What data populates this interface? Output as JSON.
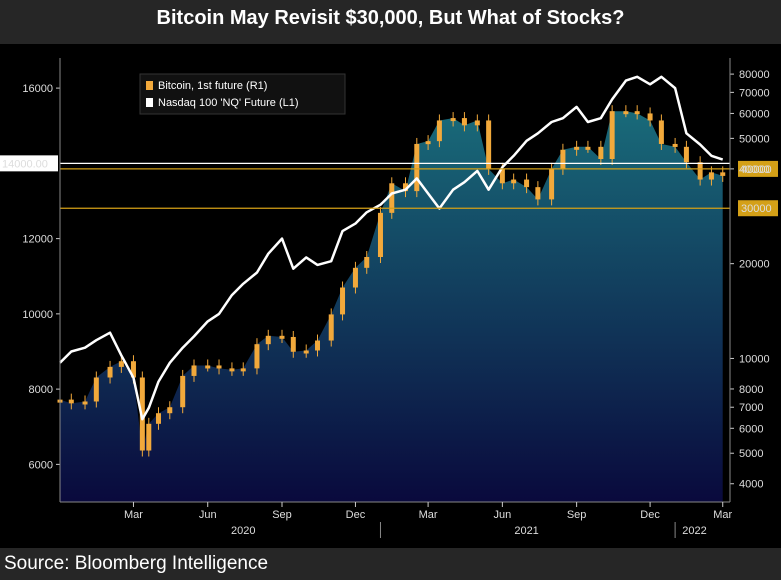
{
  "header": {
    "title": "Bitcoin May Revisit $30,000, But What of Stocks?"
  },
  "footer": {
    "source": "Source: Bloomberg Intelligence"
  },
  "colors": {
    "bitcoin": "#f2a93b",
    "nasdaq": "#ffffff",
    "refline": "#d4a017",
    "bg_top": "#1a6a7a",
    "bg_bottom": "#0a0a3a"
  },
  "chart_data": {
    "type": "line",
    "title": "Bitcoin May Revisit $30,000, But What of Stocks?",
    "x_tick_labels": [
      "Mar",
      "Jun",
      "Sep",
      "Dec",
      "Mar",
      "Jun",
      "Sep",
      "Dec",
      "Mar"
    ],
    "x_year_labels": [
      "2020",
      "2021",
      "2022"
    ],
    "left_axis": {
      "scale": "linear",
      "ylim": [
        5000,
        16800
      ],
      "ticks": [
        6000,
        8000,
        10000,
        12000,
        16000
      ]
    },
    "right_axis": {
      "scale": "log",
      "ylim": [
        3500,
        90000
      ],
      "ticks": [
        4000,
        5000,
        6000,
        7000,
        8000,
        10000,
        20000,
        40000,
        50000,
        60000,
        70000,
        80000
      ]
    },
    "ref_lines": [
      {
        "label": "14000.00",
        "value": 14000,
        "axis": "left"
      },
      {
        "label": "40000",
        "value": 40000,
        "axis": "right"
      },
      {
        "label": "30000",
        "value": 30000,
        "axis": "right"
      }
    ],
    "series": [
      {
        "name": "Nasdaq 100 'NQ' Future  (L1)",
        "color": "#ffffff",
        "axis": "left",
        "dates": [
          "2019-12-01",
          "2019-12-15",
          "2020-01-01",
          "2020-01-15",
          "2020-02-01",
          "2020-02-15",
          "2020-03-01",
          "2020-03-12",
          "2020-03-20",
          "2020-04-01",
          "2020-04-15",
          "2020-05-01",
          "2020-05-15",
          "2020-06-01",
          "2020-06-15",
          "2020-07-01",
          "2020-07-15",
          "2020-08-01",
          "2020-08-15",
          "2020-09-01",
          "2020-09-15",
          "2020-10-01",
          "2020-10-15",
          "2020-11-01",
          "2020-11-15",
          "2020-12-01",
          "2020-12-15",
          "2021-01-01",
          "2021-01-15",
          "2021-02-01",
          "2021-02-15",
          "2021-03-01",
          "2021-03-15",
          "2021-04-01",
          "2021-04-15",
          "2021-05-01",
          "2021-05-15",
          "2021-06-01",
          "2021-06-15",
          "2021-07-01",
          "2021-07-15",
          "2021-08-01",
          "2021-08-15",
          "2021-09-01",
          "2021-09-15",
          "2021-10-01",
          "2021-10-15",
          "2021-11-01",
          "2021-11-15",
          "2021-12-01",
          "2021-12-15",
          "2022-01-01",
          "2022-01-15",
          "2022-02-01",
          "2022-02-15",
          "2022-03-01"
        ],
        "values": [
          8700,
          9000,
          9100,
          9300,
          9500,
          8900,
          8300,
          7200,
          7500,
          8200,
          8700,
          9100,
          9400,
          9800,
          10000,
          10500,
          10800,
          11100,
          11600,
          12000,
          11200,
          11500,
          11300,
          11400,
          12200,
          12400,
          12700,
          12900,
          13200,
          13300,
          13600,
          13200,
          12800,
          13300,
          13500,
          13800,
          13300,
          13900,
          14200,
          14600,
          14800,
          15100,
          15200,
          15500,
          15100,
          15200,
          15700,
          16200,
          16300,
          16100,
          16300,
          16000,
          14800,
          14500,
          14200,
          14100
        ]
      },
      {
        "name": "Bitcoin, 1st future (R1)",
        "color": "#f2a93b",
        "axis": "right",
        "dates": [
          "2019-12-01",
          "2019-12-15",
          "2020-01-01",
          "2020-01-15",
          "2020-02-01",
          "2020-02-15",
          "2020-03-01",
          "2020-03-12",
          "2020-03-20",
          "2020-04-01",
          "2020-04-15",
          "2020-05-01",
          "2020-05-15",
          "2020-06-01",
          "2020-06-15",
          "2020-07-01",
          "2020-07-15",
          "2020-08-01",
          "2020-08-15",
          "2020-09-01",
          "2020-09-15",
          "2020-10-01",
          "2020-10-15",
          "2020-11-01",
          "2020-11-15",
          "2020-12-01",
          "2020-12-15",
          "2021-01-01",
          "2021-01-15",
          "2021-02-01",
          "2021-02-15",
          "2021-03-01",
          "2021-03-15",
          "2021-04-01",
          "2021-04-15",
          "2021-05-01",
          "2021-05-15",
          "2021-06-01",
          "2021-06-15",
          "2021-07-01",
          "2021-07-15",
          "2021-08-01",
          "2021-08-15",
          "2021-09-01",
          "2021-09-15",
          "2021-10-01",
          "2021-10-15",
          "2021-11-01",
          "2021-11-15",
          "2021-12-01",
          "2021-12-15",
          "2022-01-01",
          "2022-01-15",
          "2022-02-01",
          "2022-02-15",
          "2022-03-01"
        ],
        "values": [
          7400,
          7200,
          7300,
          8700,
          9400,
          9800,
          8700,
          5100,
          6200,
          6700,
          7000,
          8800,
          9500,
          9500,
          9300,
          9200,
          9300,
          11100,
          11800,
          11700,
          10500,
          10600,
          11400,
          13800,
          16800,
          19400,
          21000,
          29000,
          36000,
          34000,
          48000,
          49000,
          57000,
          58000,
          55000,
          57000,
          40000,
          36000,
          37000,
          35000,
          32000,
          40000,
          46000,
          47000,
          47000,
          43000,
          61000,
          61000,
          60000,
          57000,
          48000,
          47000,
          42000,
          37000,
          39000,
          38000
        ]
      }
    ]
  }
}
